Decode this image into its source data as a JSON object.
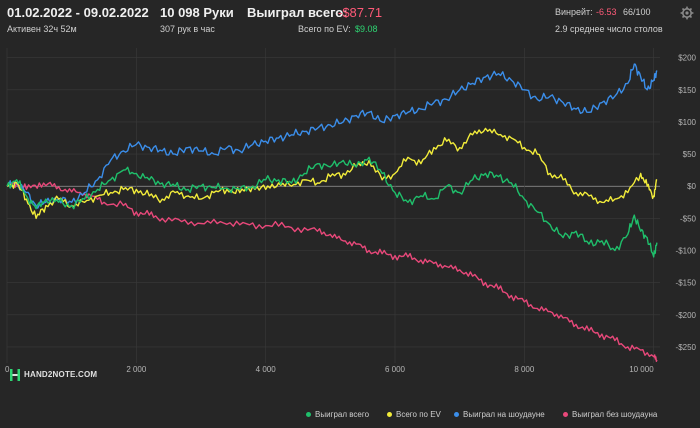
{
  "header": {
    "date_range": "01.02.2022 - 09.02.2022",
    "active": "Активен 32ч 52м",
    "hands": "10 098 Руки",
    "hands_per_hour": "307 рук в час",
    "won_total_label": "Выиграл всего:",
    "won_total_value": "-$87.71",
    "ev_label": "Всего по EV:",
    "ev_value": "$9.08",
    "winrate_label": "Винрейт:",
    "winrate_value": "-6.53",
    "winrate_unit": "66/100",
    "avg_tables": "2.9 среднее число столов"
  },
  "logo_text": "HAND2NOTE.COM",
  "colors": {
    "won": "#1fbf6b",
    "ev": "#f2ec3a",
    "showdown": "#3b8eea",
    "non_showdown": "#e8487a",
    "grid": "#3a3a3a",
    "zero_line": "#9a9a9a",
    "background": "#262626"
  },
  "chart_data": {
    "type": "line",
    "xlabel": "",
    "ylabel": "",
    "xlim": [
      0,
      10098
    ],
    "ylim": [
      -275,
      215
    ],
    "x_ticks": [
      0,
      2000,
      4000,
      6000,
      8000,
      10000
    ],
    "x_tick_labels": [
      "0",
      "2 000",
      "4 000",
      "6 000",
      "8 000",
      "10 000"
    ],
    "y_ticks": [
      200,
      150,
      100,
      50,
      0,
      -50,
      -100,
      -150,
      -200,
      -250
    ],
    "y_tick_labels": [
      "$200",
      "$150",
      "$100",
      "$50",
      "$0",
      "-$50",
      "-$100",
      "-$150",
      "-$200",
      "-$250"
    ],
    "grid": true,
    "legend_position": "bottom-right",
    "series": [
      {
        "name": "Выиграл всего",
        "color": "#1fbf6b",
        "points": [
          [
            0,
            0
          ],
          [
            150,
            10
          ],
          [
            300,
            -15
          ],
          [
            450,
            -35
          ],
          [
            600,
            -20
          ],
          [
            800,
            -25
          ],
          [
            1000,
            -30
          ],
          [
            1200,
            -20
          ],
          [
            1400,
            -5
          ],
          [
            1600,
            10
          ],
          [
            1800,
            25
          ],
          [
            2000,
            20
          ],
          [
            2200,
            10
          ],
          [
            2400,
            5
          ],
          [
            2600,
            0
          ],
          [
            2800,
            -5
          ],
          [
            3000,
            0
          ],
          [
            3200,
            -2
          ],
          [
            3400,
            -3
          ],
          [
            3600,
            -5
          ],
          [
            3800,
            0
          ],
          [
            4000,
            10
          ],
          [
            4200,
            10
          ],
          [
            4400,
            5
          ],
          [
            4600,
            20
          ],
          [
            4800,
            35
          ],
          [
            5000,
            30
          ],
          [
            5200,
            40
          ],
          [
            5400,
            30
          ],
          [
            5600,
            45
          ],
          [
            5800,
            20
          ],
          [
            6000,
            -10
          ],
          [
            6200,
            -25
          ],
          [
            6400,
            -15
          ],
          [
            6600,
            -20
          ],
          [
            6800,
            0
          ],
          [
            7000,
            -10
          ],
          [
            7200,
            10
          ],
          [
            7400,
            20
          ],
          [
            7600,
            15
          ],
          [
            7800,
            5
          ],
          [
            8000,
            -20
          ],
          [
            8200,
            -40
          ],
          [
            8400,
            -60
          ],
          [
            8600,
            -80
          ],
          [
            8800,
            -70
          ],
          [
            9000,
            -90
          ],
          [
            9200,
            -85
          ],
          [
            9400,
            -100
          ],
          [
            9600,
            -75
          ],
          [
            9700,
            -45
          ],
          [
            9800,
            -70
          ],
          [
            9900,
            -80
          ],
          [
            10000,
            -110
          ],
          [
            10050,
            -87.71
          ]
        ]
      },
      {
        "name": "Всего по EV",
        "color": "#f2ec3a",
        "points": [
          [
            0,
            0
          ],
          [
            150,
            5
          ],
          [
            300,
            -20
          ],
          [
            450,
            -50
          ],
          [
            600,
            -30
          ],
          [
            800,
            -20
          ],
          [
            1000,
            -30
          ],
          [
            1200,
            -25
          ],
          [
            1400,
            -15
          ],
          [
            1600,
            -10
          ],
          [
            1800,
            -5
          ],
          [
            2000,
            -5
          ],
          [
            2200,
            -15
          ],
          [
            2400,
            -20
          ],
          [
            2600,
            -10
          ],
          [
            2800,
            -15
          ],
          [
            3000,
            -20
          ],
          [
            3200,
            -10
          ],
          [
            3400,
            -5
          ],
          [
            3600,
            -10
          ],
          [
            3800,
            0
          ],
          [
            4000,
            -5
          ],
          [
            4200,
            5
          ],
          [
            4400,
            0
          ],
          [
            4600,
            10
          ],
          [
            4800,
            5
          ],
          [
            5000,
            15
          ],
          [
            5200,
            20
          ],
          [
            5400,
            30
          ],
          [
            5600,
            40
          ],
          [
            5800,
            10
          ],
          [
            6000,
            20
          ],
          [
            6200,
            45
          ],
          [
            6400,
            35
          ],
          [
            6600,
            60
          ],
          [
            6800,
            70
          ],
          [
            7000,
            60
          ],
          [
            7200,
            80
          ],
          [
            7400,
            90
          ],
          [
            7600,
            80
          ],
          [
            7800,
            75
          ],
          [
            8000,
            60
          ],
          [
            8200,
            50
          ],
          [
            8400,
            20
          ],
          [
            8600,
            10
          ],
          [
            8800,
            -10
          ],
          [
            9000,
            -15
          ],
          [
            9200,
            -25
          ],
          [
            9400,
            -20
          ],
          [
            9600,
            -10
          ],
          [
            9800,
            20
          ],
          [
            9900,
            0
          ],
          [
            10000,
            -15
          ],
          [
            10050,
            9.08
          ]
        ]
      },
      {
        "name": "Выиграл на шоудауне",
        "color": "#3b8eea",
        "points": [
          [
            0,
            0
          ],
          [
            150,
            5
          ],
          [
            300,
            -10
          ],
          [
            450,
            -30
          ],
          [
            600,
            -25
          ],
          [
            800,
            -20
          ],
          [
            1000,
            -25
          ],
          [
            1200,
            -10
          ],
          [
            1400,
            10
          ],
          [
            1600,
            40
          ],
          [
            1800,
            55
          ],
          [
            2000,
            65
          ],
          [
            2200,
            60
          ],
          [
            2400,
            55
          ],
          [
            2600,
            50
          ],
          [
            2800,
            60
          ],
          [
            3000,
            55
          ],
          [
            3200,
            50
          ],
          [
            3400,
            60
          ],
          [
            3600,
            55
          ],
          [
            3800,
            65
          ],
          [
            4000,
            70
          ],
          [
            4200,
            75
          ],
          [
            4400,
            80
          ],
          [
            4600,
            85
          ],
          [
            4800,
            90
          ],
          [
            5000,
            95
          ],
          [
            5200,
            100
          ],
          [
            5400,
            110
          ],
          [
            5600,
            115
          ],
          [
            5800,
            100
          ],
          [
            6000,
            110
          ],
          [
            6200,
            115
          ],
          [
            6400,
            120
          ],
          [
            6600,
            130
          ],
          [
            6800,
            135
          ],
          [
            7000,
            150
          ],
          [
            7200,
            160
          ],
          [
            7400,
            170
          ],
          [
            7600,
            175
          ],
          [
            7800,
            165
          ],
          [
            8000,
            150
          ],
          [
            8200,
            135
          ],
          [
            8400,
            140
          ],
          [
            8600,
            130
          ],
          [
            8800,
            120
          ],
          [
            9000,
            115
          ],
          [
            9200,
            130
          ],
          [
            9400,
            140
          ],
          [
            9600,
            160
          ],
          [
            9700,
            190
          ],
          [
            9800,
            170
          ],
          [
            9900,
            150
          ],
          [
            10000,
            165
          ],
          [
            10050,
            180
          ]
        ]
      },
      {
        "name": "Выиграл без шоудауна",
        "color": "#e8487a",
        "points": [
          [
            0,
            0
          ],
          [
            150,
            5
          ],
          [
            300,
            -5
          ],
          [
            500,
            5
          ],
          [
            700,
            0
          ],
          [
            900,
            -5
          ],
          [
            1100,
            -10
          ],
          [
            1300,
            -15
          ],
          [
            1500,
            -25
          ],
          [
            1800,
            -30
          ],
          [
            2000,
            -40
          ],
          [
            2200,
            -45
          ],
          [
            2400,
            -50
          ],
          [
            2700,
            -55
          ],
          [
            3000,
            -58
          ],
          [
            3300,
            -55
          ],
          [
            3600,
            -60
          ],
          [
            3900,
            -60
          ],
          [
            4200,
            -62
          ],
          [
            4500,
            -65
          ],
          [
            4800,
            -70
          ],
          [
            5000,
            -75
          ],
          [
            5200,
            -85
          ],
          [
            5400,
            -90
          ],
          [
            5600,
            -100
          ],
          [
            5800,
            -105
          ],
          [
            6000,
            -108
          ],
          [
            6200,
            -110
          ],
          [
            6400,
            -115
          ],
          [
            6600,
            -120
          ],
          [
            6800,
            -125
          ],
          [
            7000,
            -130
          ],
          [
            7200,
            -140
          ],
          [
            7400,
            -150
          ],
          [
            7600,
            -160
          ],
          [
            7800,
            -170
          ],
          [
            8000,
            -180
          ],
          [
            8200,
            -190
          ],
          [
            8400,
            -195
          ],
          [
            8600,
            -205
          ],
          [
            8800,
            -215
          ],
          [
            9000,
            -225
          ],
          [
            9200,
            -230
          ],
          [
            9400,
            -240
          ],
          [
            9600,
            -250
          ],
          [
            9800,
            -255
          ],
          [
            10000,
            -265
          ],
          [
            10050,
            -270
          ]
        ]
      }
    ]
  }
}
